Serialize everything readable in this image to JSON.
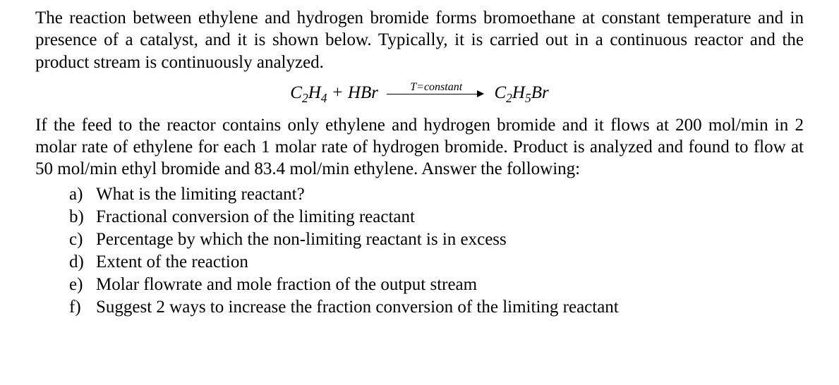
{
  "intro": "The reaction between ethylene and hydrogen bromide forms bromoethane at constant temperature and in presence of a catalyst, and it is shown below. Typically, it is carried out in a continuous reactor and the product stream is continuously analyzed.",
  "equation": {
    "reactant1_base": "C",
    "reactant1_sub1": "2",
    "reactant1_base2": "H",
    "reactant1_sub2": "4",
    "plus": " + ",
    "reactant2": "HBr",
    "arrow_label": "T=constant",
    "product_base": "C",
    "product_sub1": "2",
    "product_base2": "H",
    "product_sub2": "5",
    "product_base3": "Br"
  },
  "body": "If the feed to the reactor contains only ethylene and hydrogen bromide and it flows at 200 mol/min in 2 molar rate of ethylene for each 1 molar rate of hydrogen bromide.  Product is analyzed and found to flow at 50 mol/min ethyl bromide and 83.4 mol/min ethylene. Answer the following:",
  "questions": [
    {
      "marker": "a)",
      "text": "What is the limiting reactant?"
    },
    {
      "marker": "b)",
      "text": "Fractional conversion of the limiting reactant"
    },
    {
      "marker": "c)",
      "text": "Percentage by which the non-limiting reactant is in excess"
    },
    {
      "marker": "d)",
      "text": "Extent of the reaction"
    },
    {
      "marker": "e)",
      "text": "Molar flowrate and mole fraction of the output stream"
    },
    {
      "marker": "f)",
      "text": "Suggest 2 ways to increase the fraction conversion of the limiting reactant"
    }
  ]
}
